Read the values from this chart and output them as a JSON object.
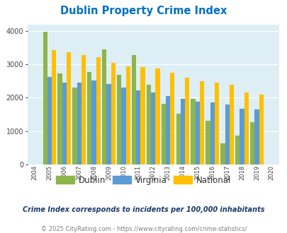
{
  "title": "Dublin Property Crime Index",
  "years": [
    2004,
    2005,
    2006,
    2007,
    2008,
    2009,
    2010,
    2011,
    2012,
    2013,
    2014,
    2015,
    2016,
    2017,
    2018,
    2019,
    2020
  ],
  "dublin": [
    null,
    3980,
    2720,
    2300,
    2780,
    3460,
    2680,
    3280,
    2380,
    1820,
    1510,
    1960,
    1310,
    620,
    860,
    1260,
    null
  ],
  "virginia": [
    null,
    2630,
    2460,
    2460,
    2510,
    2420,
    2310,
    2220,
    2150,
    2060,
    1960,
    1890,
    1860,
    1800,
    1660,
    1640,
    null
  ],
  "national": [
    null,
    3420,
    3360,
    3280,
    3210,
    3050,
    2950,
    2930,
    2880,
    2740,
    2600,
    2500,
    2450,
    2380,
    2160,
    2100,
    null
  ],
  "dublin_color": "#8db54b",
  "virginia_color": "#5b9bd5",
  "national_color": "#ffc000",
  "bg_color": "#ddeef4",
  "subtitle": "Crime Index corresponds to incidents per 100,000 inhabitants",
  "footer": "© 2025 CityRating.com - https://www.cityrating.com/crime-statistics/",
  "ylim": [
    0,
    4200
  ],
  "yticks": [
    0,
    1000,
    2000,
    3000,
    4000
  ],
  "title_color": "#0070c0",
  "subtitle_color": "#1a3a6b",
  "footer_color": "#7f7f7f"
}
